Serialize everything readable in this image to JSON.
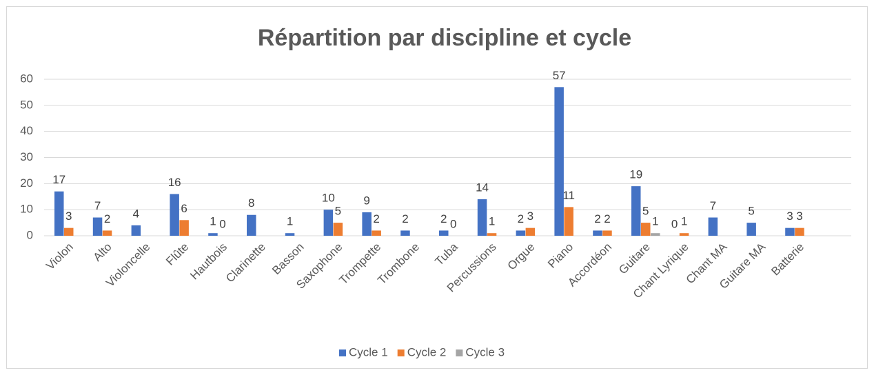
{
  "chart_data": {
    "type": "bar",
    "title": "Répartition par discipline et cycle",
    "categories": [
      "Violon",
      "Alto",
      "Violoncelle",
      "Flûte",
      "Hautbois",
      "Clarinette",
      "Basson",
      "Saxophone",
      "Trompette",
      "Trombone",
      "Tuba",
      "Percussions",
      "Orgue",
      "Piano",
      "Accordéon",
      "Guitare",
      "Chant Lyrique",
      "Chant MA",
      "Guitare MA",
      "Batterie"
    ],
    "series": [
      {
        "name": "Cycle 1",
        "color": "#4472c4",
        "values": [
          17,
          7,
          4,
          16,
          1,
          8,
          1,
          10,
          9,
          2,
          2,
          14,
          2,
          57,
          2,
          19,
          0,
          7,
          5,
          3
        ]
      },
      {
        "name": "Cycle 2",
        "color": "#ed7d31",
        "values": [
          3,
          2,
          null,
          6,
          0,
          null,
          null,
          5,
          2,
          null,
          0,
          1,
          3,
          11,
          2,
          5,
          1,
          null,
          null,
          3
        ]
      },
      {
        "name": "Cycle 3",
        "color": "#a5a5a5",
        "values": [
          null,
          null,
          null,
          null,
          null,
          null,
          null,
          null,
          null,
          null,
          null,
          null,
          null,
          null,
          null,
          1,
          null,
          null,
          null,
          null
        ]
      }
    ],
    "ylim": [
      0,
      60
    ],
    "yticks": [
      0,
      10,
      20,
      30,
      40,
      50,
      60
    ],
    "grid": true,
    "legend": "bottom"
  }
}
